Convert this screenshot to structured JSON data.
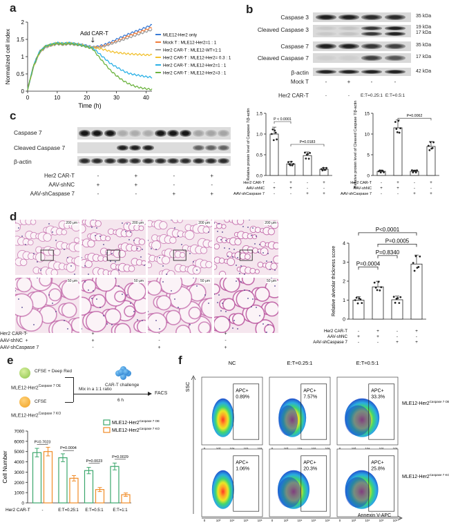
{
  "panels": {
    "a": "a",
    "b": "b",
    "c": "c",
    "d": "d",
    "e": "e",
    "f": "f"
  },
  "panel_a": {
    "ylabel": "Normalized cell index",
    "xlabel": "Time (h)",
    "annotation": "Add CAR-T",
    "xticks": [
      "0",
      "10",
      "20",
      "30",
      "40"
    ],
    "yticks": [
      "0",
      "0.5",
      "1",
      "1.5",
      "2"
    ],
    "legend": [
      {
        "label": "MLE12-Her2 only",
        "color": "#3a7bd5"
      },
      {
        "label": "Mock T : MLE12-Her2=1 : 1",
        "color": "#f07c3a"
      },
      {
        "label": "Her2 CAR-T : MLE12-WT=1:1",
        "color": "#9c9c9c"
      },
      {
        "label": "Her2 CAR-T : MLE12-Her2= 0.3 : 1",
        "color": "#f2c12e"
      },
      {
        "label": "Her2 CAR-T : MLE12-Her2=1 : 1",
        "color": "#2ab0e6"
      },
      {
        "label": "Her2 CAR-T : MLE12-Her2=3 : 1",
        "color": "#6cb33f"
      }
    ]
  },
  "chart_data": [
    {
      "type": "line",
      "title": "",
      "xlabel": "Time (h)",
      "ylabel": "Normalized cell index",
      "xlim": [
        0,
        42
      ],
      "ylim": [
        0,
        2
      ],
      "x": [
        0,
        2,
        4,
        6,
        8,
        10,
        12,
        14,
        16,
        18,
        20,
        22,
        24,
        26,
        28,
        30,
        32,
        34,
        36,
        38,
        40,
        42
      ],
      "series": [
        {
          "name": "MLE12-Her2 only",
          "color": "#3a7bd5",
          "values": [
            0.05,
            0.75,
            1.15,
            1.3,
            1.35,
            1.4,
            1.38,
            1.4,
            1.38,
            1.36,
            1.32,
            1.28,
            1.3,
            1.35,
            1.42,
            1.5,
            1.58,
            1.65,
            1.72,
            1.78,
            1.85,
            1.92
          ]
        },
        {
          "name": "Mock T : MLE12-Her2=1 : 1",
          "color": "#f07c3a",
          "values": [
            0.05,
            0.72,
            1.12,
            1.28,
            1.33,
            1.38,
            1.36,
            1.38,
            1.36,
            1.34,
            1.3,
            1.27,
            1.28,
            1.32,
            1.38,
            1.45,
            1.52,
            1.6,
            1.66,
            1.72,
            1.78,
            1.85
          ]
        },
        {
          "name": "Her2 CAR-T : MLE12-WT=1:1",
          "color": "#9c9c9c",
          "values": [
            0.05,
            0.7,
            1.1,
            1.26,
            1.32,
            1.36,
            1.34,
            1.36,
            1.34,
            1.32,
            1.28,
            1.25,
            1.27,
            1.3,
            1.36,
            1.42,
            1.48,
            1.54,
            1.6,
            1.66,
            1.72,
            1.78
          ]
        },
        {
          "name": "Her2 CAR-T : MLE12-Her2= 0.3 : 1",
          "color": "#f2c12e",
          "values": [
            0.05,
            0.72,
            1.12,
            1.3,
            1.35,
            1.4,
            1.38,
            1.4,
            1.37,
            1.35,
            1.3,
            1.27,
            1.24,
            1.2,
            1.15,
            1.12,
            1.1,
            1.08,
            1.07,
            1.06,
            1.05,
            1.05
          ]
        },
        {
          "name": "Her2 CAR-T : MLE12-Her2=1 : 1",
          "color": "#2ab0e6",
          "values": [
            0.05,
            0.74,
            1.14,
            1.3,
            1.36,
            1.4,
            1.38,
            1.4,
            1.37,
            1.34,
            1.3,
            1.26,
            1.1,
            0.95,
            0.8,
            0.7,
            0.6,
            0.52,
            0.48,
            0.45,
            0.42,
            0.4
          ]
        },
        {
          "name": "Her2 CAR-T : MLE12-Her2=3 : 1",
          "color": "#6cb33f",
          "values": [
            0.05,
            0.73,
            1.13,
            1.3,
            1.35,
            1.38,
            1.36,
            1.38,
            1.36,
            1.33,
            1.28,
            1.22,
            1.0,
            0.8,
            0.6,
            0.45,
            0.32,
            0.22,
            0.15,
            0.1,
            0.07,
            0.05
          ]
        }
      ]
    },
    {
      "type": "bar",
      "title": "",
      "ylabel": "Relative protein level of Caspase 7/β-actin",
      "categories": [
        "1",
        "2",
        "3",
        "4"
      ],
      "values": [
        1.0,
        0.28,
        0.48,
        0.15
      ],
      "ylim": [
        0,
        1.5
      ],
      "yticks": [
        "0.0",
        "0.5",
        "1.0",
        "1.5"
      ],
      "annotations": [
        "P < 0.0001",
        "P=0.0183"
      ],
      "color": "#ffffff"
    },
    {
      "type": "bar",
      "title": "",
      "ylabel": "Relative protein level of Cleaved Caspase 7/β-actin",
      "categories": [
        "1",
        "2",
        "3",
        "4"
      ],
      "values": [
        1.0,
        11.5,
        1.0,
        7.0
      ],
      "ylim": [
        0,
        15
      ],
      "yticks": [
        "0",
        "5",
        "10",
        "15"
      ],
      "annotations": [
        "P=0.0062"
      ],
      "color": "#ffffff"
    },
    {
      "type": "bar",
      "title": "",
      "ylabel": "Relative alveolar thickness score",
      "categories": [
        "1",
        "2",
        "3",
        "4"
      ],
      "values": [
        1.0,
        1.7,
        1.02,
        2.9
      ],
      "ylim": [
        0,
        4
      ],
      "yticks": [
        "0",
        "1",
        "2",
        "3",
        "4"
      ],
      "annotations": [
        "P<0.0001",
        "P=0.0005",
        "P=0.8340",
        "P=0.0004"
      ],
      "color": "#ffffff"
    },
    {
      "type": "bar",
      "title": "",
      "ylabel": "Cell Number",
      "categories": [
        "-",
        "E:T=0.25:1",
        "E:T=0.5:1",
        "E:T=1:1"
      ],
      "series": [
        {
          "name": "MLE12-Her2 Caspase 7 OE",
          "color": "#3aa66b",
          "values": [
            4900,
            4400,
            3150,
            3550
          ]
        },
        {
          "name": "MLE12-Her2 Caspase 7 KO",
          "color": "#f08a24",
          "values": [
            5000,
            2400,
            1300,
            800
          ]
        }
      ],
      "ylim": [
        0,
        7000
      ],
      "yticks": [
        "0",
        "1000",
        "2000",
        "3000",
        "4000",
        "5000",
        "6000",
        "7000"
      ],
      "annotations": [
        "P=0.7023",
        "P=0.0004",
        "P=0.0023",
        "P=0.0029"
      ]
    }
  ],
  "panel_b": {
    "rows": [
      "Caspase 3",
      "Cleaved Caspase 3",
      "Caspase 7",
      "Cleaved Caspase 7",
      "β-actin"
    ],
    "kda": [
      "35 kDa",
      "19 kDa",
      "17 kDa",
      "35 kDa",
      "17 kDa",
      "42 kDa"
    ],
    "mock_label": "Mock T",
    "car_label": "Her2 CAR-T",
    "mock_signs": [
      "-",
      "+",
      "-",
      "-"
    ],
    "car_signs": [
      "-",
      "-",
      "E:T=0.25:1",
      "E:T=0.5:1"
    ]
  },
  "panel_c": {
    "rows": [
      "Caspase 7",
      "Cleaved Caspase 7",
      "β-actin"
    ],
    "cond_labels": [
      "Her2 CAR-T",
      "AAV-shNC",
      "AAV-shCaspase 7"
    ],
    "signs": [
      [
        "-",
        "+",
        "-",
        "+"
      ],
      [
        "+",
        "+",
        "-",
        "-"
      ],
      [
        "-",
        "-",
        "+",
        "+"
      ]
    ],
    "chart_signs_labels": [
      "Her2 CAR-T",
      "AAV-shNC",
      "AAV-shCaspase 7"
    ],
    "chart_signs": [
      [
        "-",
        "+",
        "-",
        "+"
      ],
      [
        "+",
        "+",
        "-",
        "-"
      ],
      [
        "-",
        "-",
        "+",
        "+"
      ]
    ]
  },
  "panel_d": {
    "scale_top": "200 μm",
    "scale_bottom": "50 μm",
    "cond_labels": [
      "Her2 CAR-T",
      "AAV-shNC",
      "AAV-shCaspase 7"
    ],
    "signs": [
      [
        "-",
        "+",
        "-",
        "+"
      ],
      [
        "+",
        "+",
        "-",
        "-"
      ],
      [
        "-",
        "-",
        "+",
        "+"
      ]
    ]
  },
  "panel_e": {
    "cell_oe": "MLE12-Her2",
    "cell_oe_sup": "Caspase 7 OE",
    "cell_ko": "MLE12-Her2",
    "cell_ko_sup": "Caspase 7 KO",
    "stain_oe": "CFSE + Deep Red",
    "stain_ko": "CFSE",
    "mix": "Mix in a 1:1 ratio",
    "challenge": "CAR-T challenge",
    "time": "6 h",
    "facs": "FACS",
    "car_label": "Her2 CAR-T",
    "legend_oe": "MLE12-Her2",
    "legend_oe_sup": "Caspase 7 OE",
    "legend_ko": "MLE12-Her2",
    "legend_ko_sup": "Caspase 7 KO"
  },
  "panel_f": {
    "col_titles": [
      "NC",
      "E:T=0.25:1",
      "E:T=0.5:1"
    ],
    "apc_top": [
      "APC+\n0.89%",
      "APC+\n7.57%",
      "APC+\n33.3%"
    ],
    "apc_top_label": [
      "APC+",
      "APC+",
      "APC+"
    ],
    "apc_top_value": [
      "0.89%",
      "7.57%",
      "33.3%"
    ],
    "apc_bottom_label": [
      "APC+",
      "APC+",
      "APC+"
    ],
    "apc_bottom_value": [
      "1.06%",
      "20.3%",
      "25.8%"
    ],
    "row_oe": "MLE12-Her2",
    "row_oe_sup": "Caspase 7 OE",
    "row_ko": "MLE12-Her2",
    "row_ko_sup": "Caspase 7 KO",
    "ylabel": "SSC",
    "xlabel": "Annexin V-APC",
    "xticks": [
      "0",
      "10³",
      "10⁴",
      "10⁵",
      "10⁶"
    ]
  }
}
